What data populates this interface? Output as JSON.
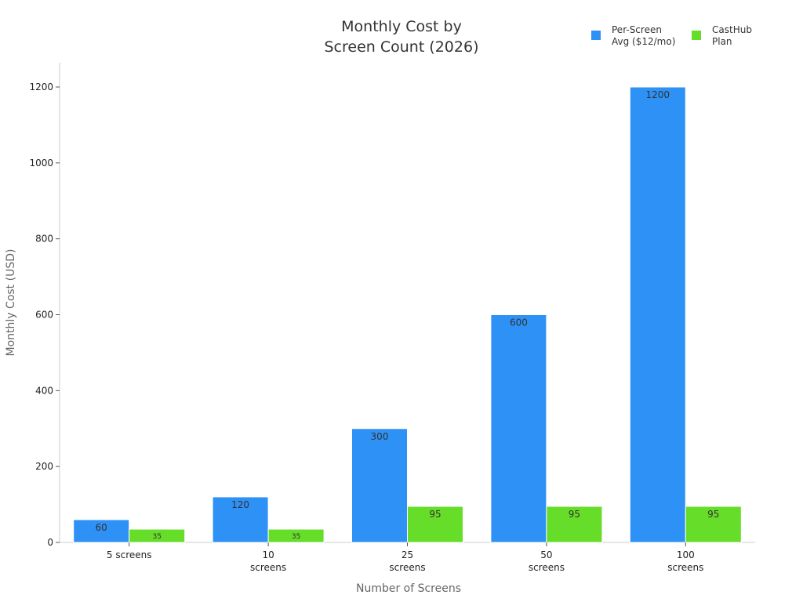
{
  "chart_data": {
    "type": "bar",
    "title_lines": [
      "Monthly Cost by",
      "Screen Count (2026)"
    ],
    "xlabel": "Number of Screens",
    "ylabel": "Monthly Cost (USD)",
    "categories": [
      [
        "5 screens"
      ],
      [
        "10",
        "screens"
      ],
      [
        "25",
        "screens"
      ],
      [
        "50",
        "screens"
      ],
      [
        "100",
        "screens"
      ]
    ],
    "series": [
      {
        "name_lines": [
          "Per-Screen",
          "Avg ($12/mo)"
        ],
        "color": "#2e91f6",
        "values": [
          60,
          120,
          300,
          600,
          1200
        ]
      },
      {
        "name_lines": [
          "CastHub",
          "Plan"
        ],
        "color": "#66dd28",
        "values": [
          35,
          35,
          95,
          95,
          95
        ]
      }
    ],
    "y_ticks": [
      0,
      200,
      400,
      600,
      800,
      1000,
      1200
    ],
    "ylim": [
      0,
      1260
    ],
    "grid": false,
    "legend_position": "top-right"
  }
}
